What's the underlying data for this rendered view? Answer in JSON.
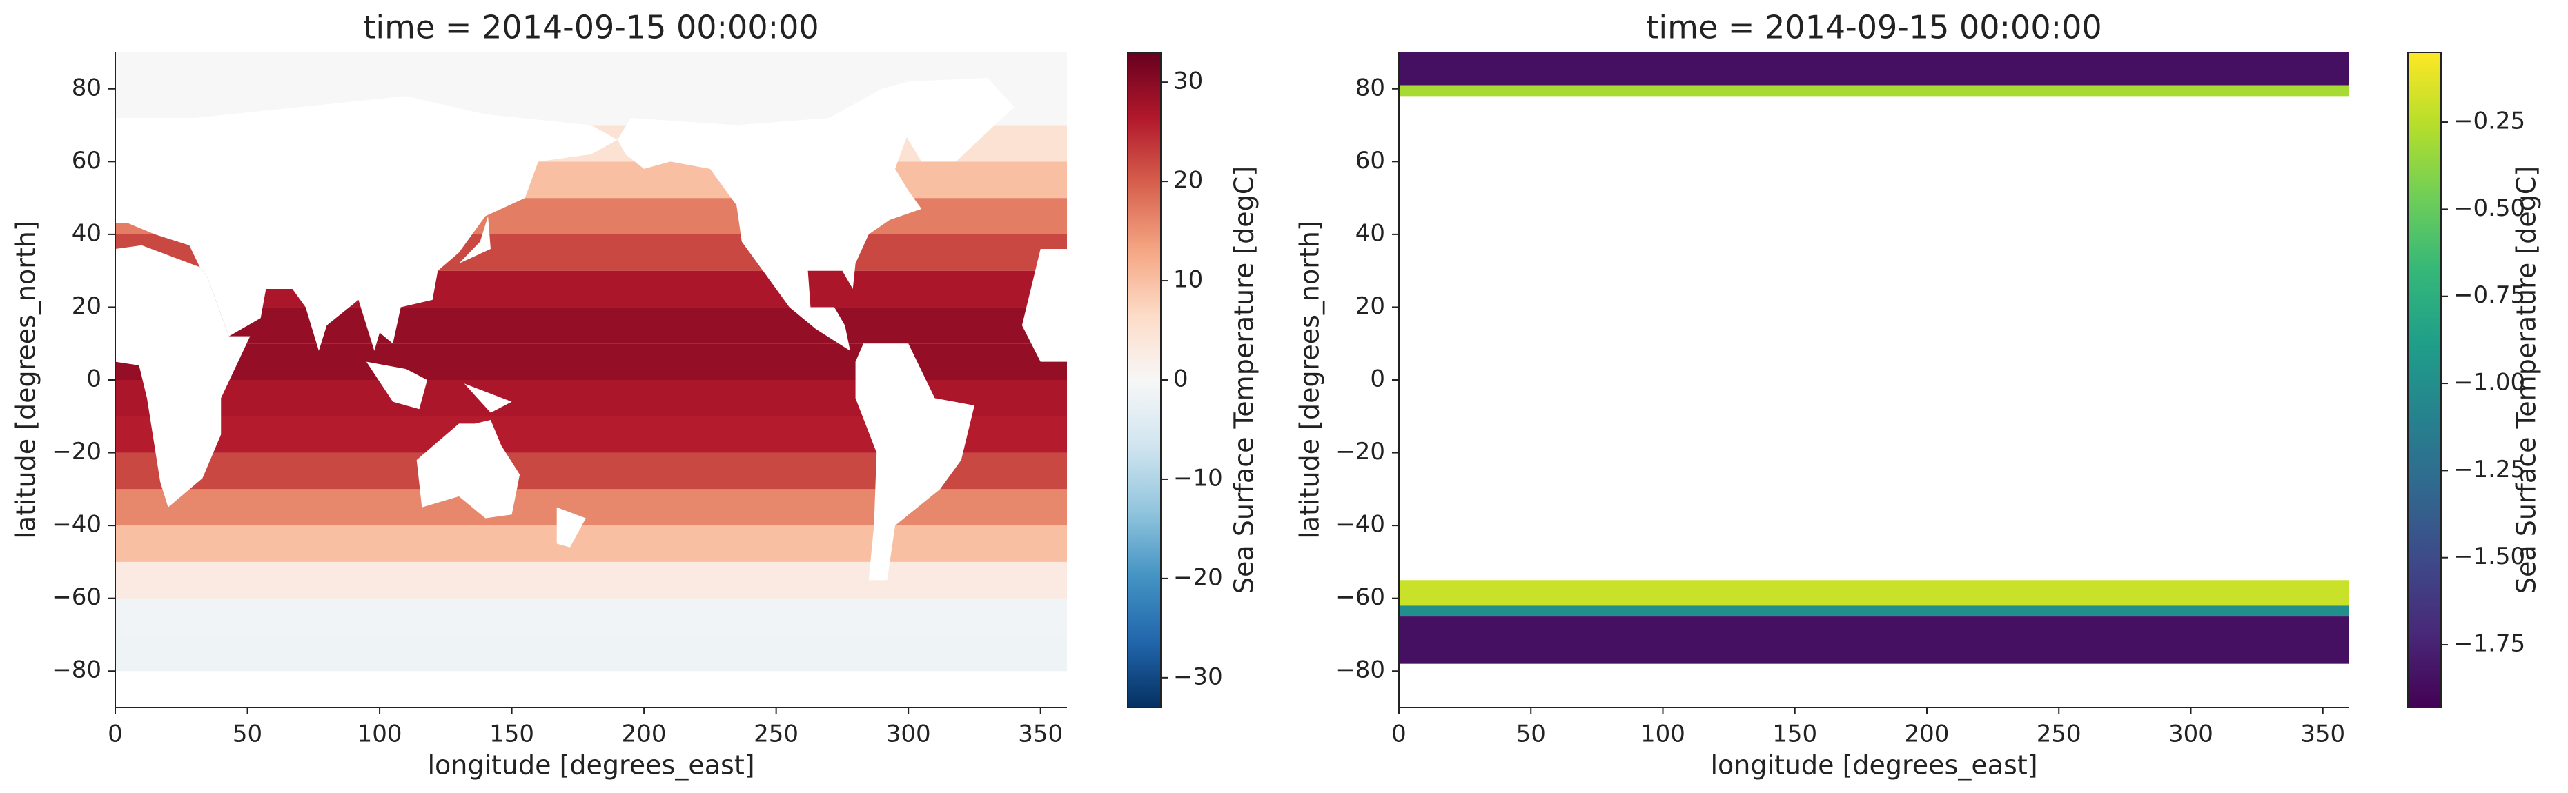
{
  "chart_data": [
    {
      "type": "heatmap",
      "title": "time = 2014-09-15 00:00:00",
      "xlabel": "longitude [degrees_east]",
      "ylabel": "latitude [degrees_north]",
      "xlim": [
        0,
        360
      ],
      "ylim": [
        -90,
        90
      ],
      "xticks": [
        0,
        50,
        100,
        150,
        200,
        250,
        300,
        350
      ],
      "yticks": [
        {
          "value": -80,
          "label": "−80"
        },
        {
          "value": -60,
          "label": "−60"
        },
        {
          "value": -40,
          "label": "−40"
        },
        {
          "value": -20,
          "label": "−20"
        },
        0,
        20,
        40,
        60,
        80
      ],
      "y_edges": [
        -90,
        -80,
        -70,
        -60,
        -50,
        -40,
        -30,
        -20,
        -10,
        0,
        10,
        20,
        30,
        40,
        50,
        60,
        70,
        80,
        90
      ],
      "values": [
        null,
        -1.5,
        -1,
        3,
        10,
        16,
        22,
        26,
        27,
        29,
        29,
        27,
        22,
        17,
        10,
        5,
        0,
        0
      ],
      "colors": [
        "#053061",
        "#2166ac",
        "#4393c3",
        "#92c5de",
        "#d1e5f0",
        "#f7f7f7",
        "#fddbc7",
        "#f4a582",
        "#d6604d",
        "#b2182b",
        "#67001f"
      ],
      "clim": [
        -33,
        33
      ],
      "colorbar_label": "Sea Surface Temperature [degC]",
      "colorbar_ticks": [
        {
          "value": -30,
          "label": "−30"
        },
        {
          "value": -20,
          "label": "−20"
        },
        {
          "value": -10,
          "label": "−10"
        },
        0,
        10,
        20,
        30
      ]
    },
    {
      "type": "heatmap",
      "title": "time = 2014-09-15 00:00:00",
      "xlabel": "longitude [degrees_east]",
      "ylabel": "latitude [degrees_north]",
      "xlim": [
        0,
        360
      ],
      "ylim": [
        -90,
        90
      ],
      "xticks": [
        0,
        50,
        100,
        150,
        200,
        250,
        300,
        350
      ],
      "yticks": [
        {
          "value": -80,
          "label": "−80"
        },
        {
          "value": -60,
          "label": "−60"
        },
        {
          "value": -40,
          "label": "−40"
        },
        {
          "value": -20,
          "label": "−20"
        },
        0,
        20,
        40,
        60,
        80
      ],
      "y_edges": [
        -90,
        -78,
        -65,
        -62,
        -55,
        78,
        81,
        90
      ],
      "values": [
        null,
        -1.85,
        -1.0,
        -0.2,
        null,
        -0.3,
        -1.85
      ],
      "colors": [
        "#440154",
        "#482878",
        "#3e4989",
        "#31688e",
        "#26828e",
        "#1f9e89",
        "#35b779",
        "#6ece58",
        "#b5de2b",
        "#fde725"
      ],
      "clim": [
        -1.93,
        -0.05
      ],
      "colorbar_label": "Sea Surface Temperature [degC]",
      "colorbar_ticks": [
        {
          "value": -1.75,
          "label": "−1.75"
        },
        {
          "value": -1.5,
          "label": "−1.50"
        },
        {
          "value": -1.25,
          "label": "−1.25"
        },
        {
          "value": -1.0,
          "label": "−1.00"
        },
        {
          "value": -0.75,
          "label": "−0.75"
        },
        {
          "value": -0.5,
          "label": "−0.50"
        },
        {
          "value": -0.25,
          "label": "−0.25"
        }
      ]
    }
  ]
}
